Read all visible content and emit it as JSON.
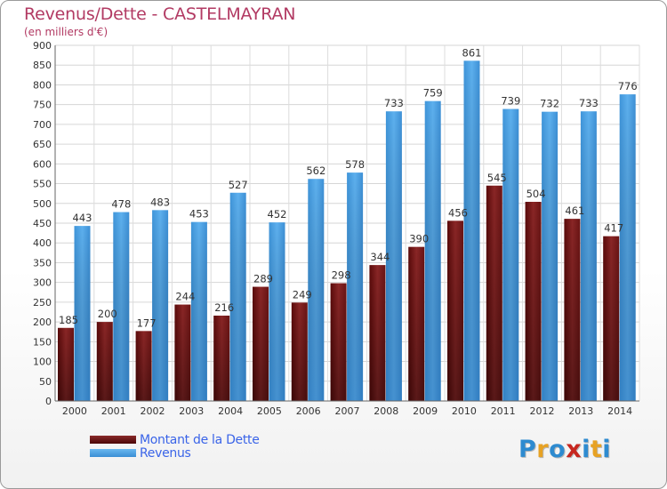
{
  "header": {
    "title": "Revenus/Dette - CASTELMAYRAN",
    "subtitle": "(en milliers d'€)"
  },
  "chart_data": {
    "type": "bar",
    "title": "Revenus/Dette - CASTELMAYRAN",
    "subtitle": "(en milliers d'€)",
    "categories": [
      "2000",
      "2001",
      "2002",
      "2003",
      "2004",
      "2005",
      "2006",
      "2007",
      "2008",
      "2009",
      "2010",
      "2011",
      "2012",
      "2013",
      "2014"
    ],
    "series": [
      {
        "name": "Montant de la Dette",
        "color": "#7a1c1c",
        "values": [
          185,
          200,
          177,
          244,
          216,
          289,
          249,
          298,
          344,
          390,
          456,
          545,
          504,
          461,
          417
        ]
      },
      {
        "name": "Revenus",
        "color": "#4fa3e3",
        "values": [
          443,
          478,
          483,
          453,
          527,
          452,
          562,
          578,
          733,
          759,
          861,
          739,
          732,
          733,
          776
        ]
      }
    ],
    "ylim": [
      0,
      900
    ],
    "ytick_step": 50,
    "grid": true,
    "legend": "bottom-left"
  },
  "legend": {
    "items": [
      {
        "label": "Montant de la Dette",
        "color": "#6a0f0f"
      },
      {
        "label": "Revenus",
        "color": "#4aa0e2"
      }
    ]
  },
  "logo": {
    "text": "Proxiti",
    "colors": [
      "#2e8bd0",
      "#e7a224",
      "#2e8bd0",
      "#c7271f",
      "#2e8bd0",
      "#e7a224",
      "#2e8bd0"
    ]
  }
}
